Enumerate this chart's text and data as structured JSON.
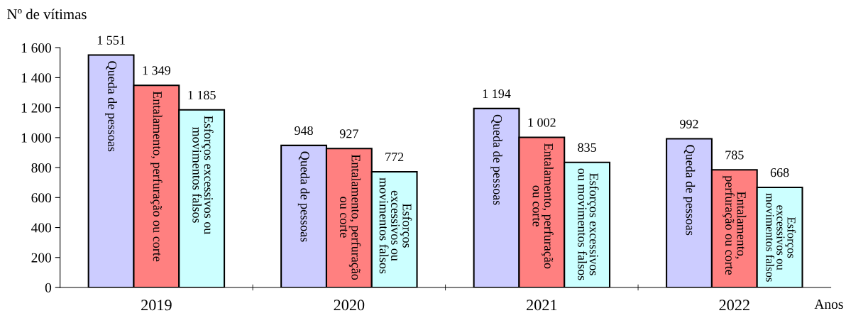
{
  "chart_data": {
    "type": "bar",
    "ylabel": "Nº de vítimas",
    "xlabel": "Anos",
    "categories": [
      "2019",
      "2020",
      "2021",
      "2022"
    ],
    "series": [
      {
        "name": "Queda de pessoas",
        "color": "#ccccff",
        "values": [
          1551,
          948,
          1194,
          992
        ],
        "value_labels": [
          "1 551",
          "948",
          "1 194",
          "992"
        ]
      },
      {
        "name": "Entalamento, perfuração ou corte",
        "color": "#ff8080",
        "values": [
          1349,
          927,
          1002,
          785
        ],
        "value_labels": [
          "1 349",
          "927",
          "1 002",
          "785"
        ]
      },
      {
        "name": "Esforços excessivos ou movimentos falsos",
        "color": "#ccffff",
        "values": [
          1185,
          772,
          835,
          668
        ],
        "value_labels": [
          "1 185",
          "772",
          "835",
          "668"
        ]
      }
    ],
    "ylim": [
      0,
      1600
    ],
    "yticks": [
      0,
      200,
      400,
      600,
      800,
      {
        "value": 1000,
        "label": "1 000"
      },
      {
        "value": 1200,
        "label": "1 200"
      },
      {
        "value": 1400,
        "label": "1 400"
      },
      {
        "value": 1600,
        "label": "1 600"
      }
    ],
    "grid": false,
    "legend": false
  }
}
